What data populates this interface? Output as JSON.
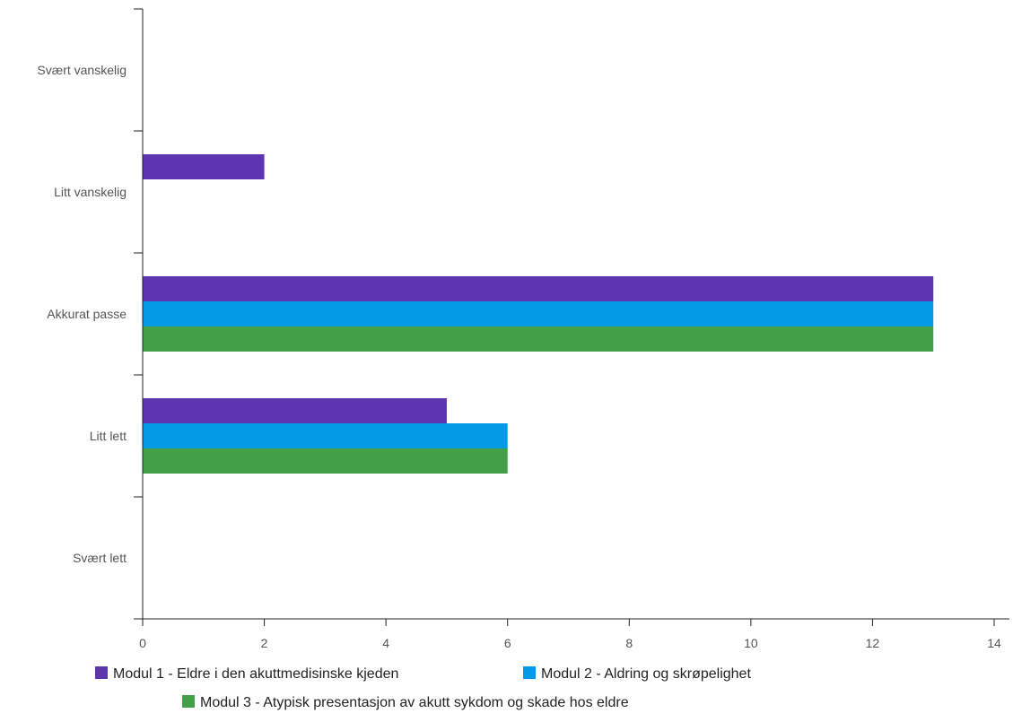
{
  "chart_data": {
    "type": "bar",
    "orientation": "horizontal",
    "title": "",
    "xlabel": "",
    "ylabel": "",
    "categories": [
      "Svært vanskelig",
      "Litt vanskelig",
      "Akkurat passe",
      "Litt lett",
      "Svært lett"
    ],
    "series": [
      {
        "name": "Modul 1 - Eldre i den akuttmedisinske kjeden",
        "color": "#5e35b1",
        "values": [
          0,
          2,
          13,
          5,
          0
        ]
      },
      {
        "name": "Modul 2 - Aldring og skrøpelighet",
        "color": "#039be5",
        "values": [
          0,
          0,
          13,
          6,
          0
        ]
      },
      {
        "name": "Modul 3 - Atypisk presentasjon av akutt sykdom og skade hos eldre",
        "color": "#43a047",
        "values": [
          0,
          0,
          13,
          6,
          0
        ]
      }
    ],
    "xlim": [
      0,
      14
    ],
    "xticks": [
      0,
      2,
      4,
      6,
      8,
      10,
      12,
      14
    ],
    "grid": false,
    "legend_position": "bottom"
  }
}
